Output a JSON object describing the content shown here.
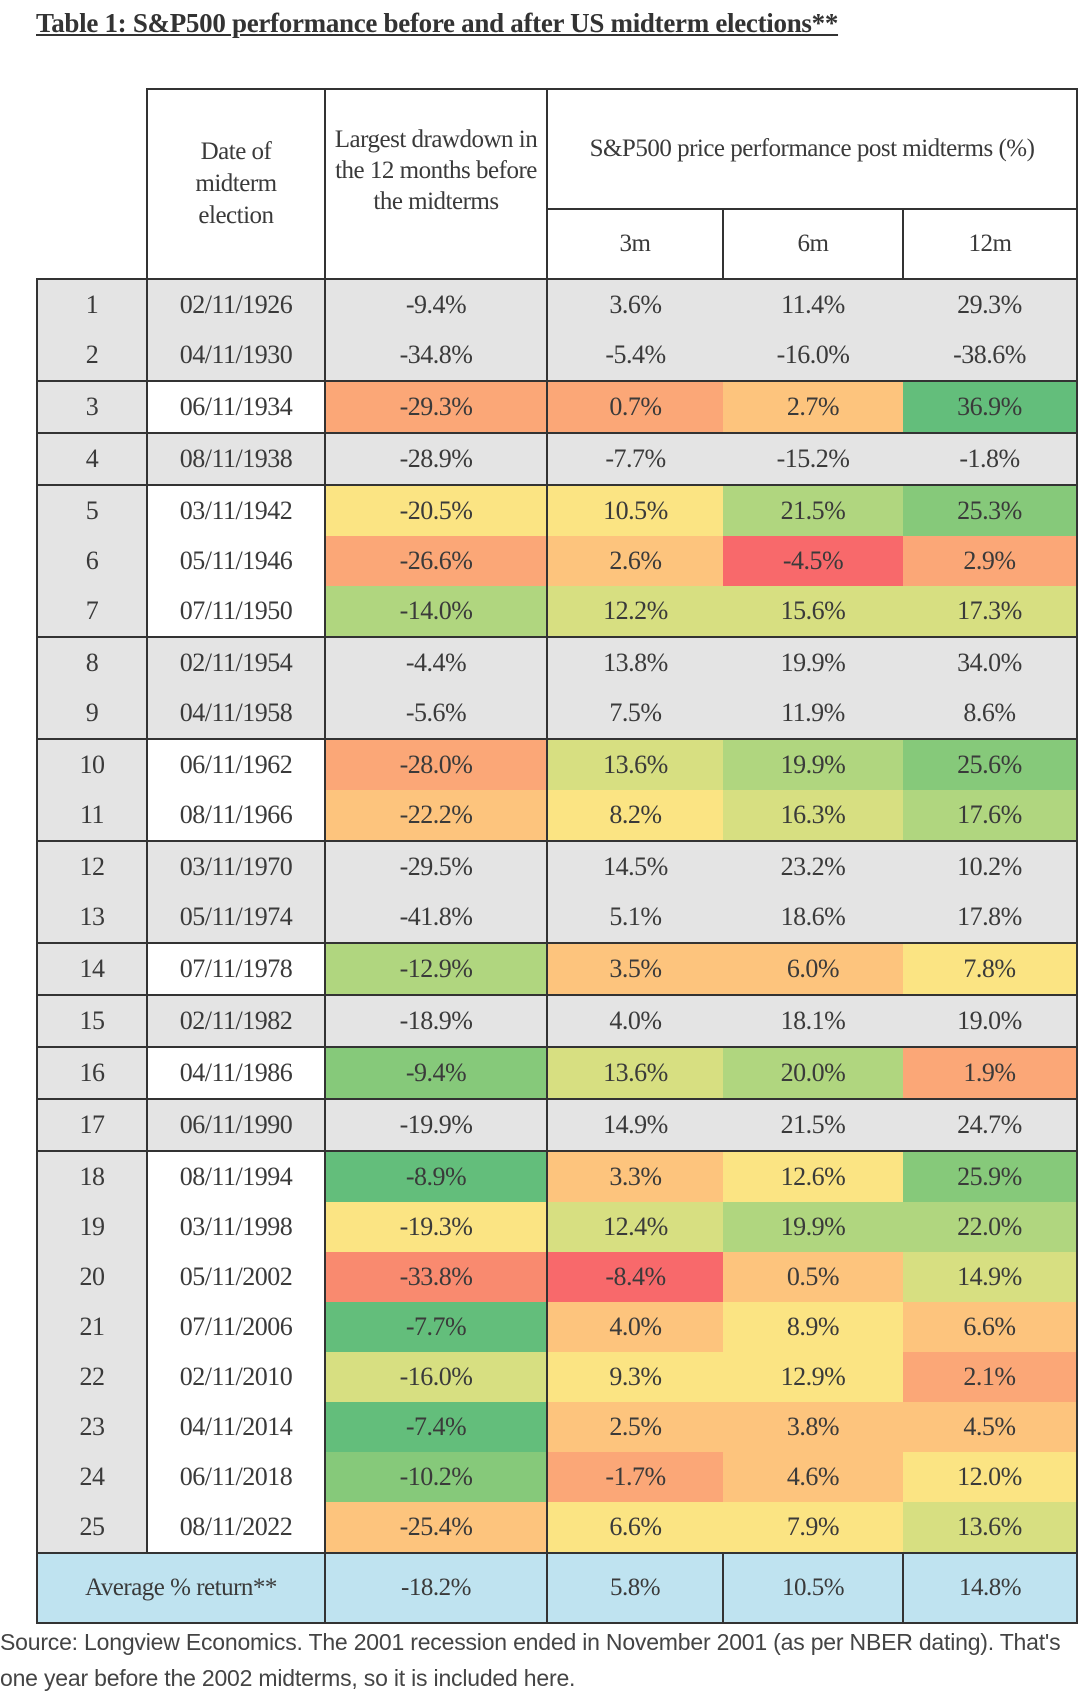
{
  "title": "Table 1: S&P500 performance before and after US midterm elections**",
  "headers": {
    "date": "Date of midterm election",
    "drawdown": "Largest drawdown in the 12 months before the midterms",
    "performance": "S&P500 price performance post midterms (%)",
    "m3": "3m",
    "m6": "6m",
    "m12": "12m"
  },
  "colors": {
    "grey": "#e4e4e4",
    "white": "#ffffff",
    "dark_green": "#63be7b",
    "green": "#86c97a",
    "light_green": "#b0d67f",
    "yellow_green": "#d7df81",
    "yellow": "#fbe483",
    "light_orange": "#fdc47d",
    "orange": "#fba777",
    "red_orange": "#f98a6f",
    "red": "#f8696b",
    "average": "#bfe3f0"
  },
  "rows": [
    {
      "n": "1",
      "date": "02/11/1926",
      "drawdown": "-9.4%",
      "m3": "3.6%",
      "m6": "11.4%",
      "m12": "29.3%",
      "group_start": true,
      "fills": [
        "grey",
        "grey",
        "grey",
        "grey"
      ]
    },
    {
      "n": "2",
      "date": "04/11/1930",
      "drawdown": "-34.8%",
      "m3": "-5.4%",
      "m6": "-16.0%",
      "m12": "-38.6%",
      "group_start": false,
      "fills": [
        "grey",
        "grey",
        "grey",
        "grey"
      ]
    },
    {
      "n": "3",
      "date": "06/11/1934",
      "drawdown": "-29.3%",
      "m3": "0.7%",
      "m6": "2.7%",
      "m12": "36.9%",
      "group_start": true,
      "fills": [
        "orange",
        "orange",
        "light_orange",
        "dark_green"
      ]
    },
    {
      "n": "4",
      "date": "08/11/1938",
      "drawdown": "-28.9%",
      "m3": "-7.7%",
      "m6": "-15.2%",
      "m12": "-1.8%",
      "group_start": true,
      "fills": [
        "grey",
        "grey",
        "grey",
        "grey"
      ]
    },
    {
      "n": "5",
      "date": "03/11/1942",
      "drawdown": "-20.5%",
      "m3": "10.5%",
      "m6": "21.5%",
      "m12": "25.3%",
      "group_start": true,
      "fills": [
        "yellow",
        "yellow",
        "light_green",
        "green"
      ]
    },
    {
      "n": "6",
      "date": "05/11/1946",
      "drawdown": "-26.6%",
      "m3": "2.6%",
      "m6": "-4.5%",
      "m12": "2.9%",
      "group_start": false,
      "fills": [
        "orange",
        "light_orange",
        "red",
        "orange"
      ]
    },
    {
      "n": "7",
      "date": "07/11/1950",
      "drawdown": "-14.0%",
      "m3": "12.2%",
      "m6": "15.6%",
      "m12": "17.3%",
      "group_start": false,
      "fills": [
        "light_green",
        "yellow_green",
        "yellow_green",
        "yellow_green"
      ]
    },
    {
      "n": "8",
      "date": "02/11/1954",
      "drawdown": "-4.4%",
      "m3": "13.8%",
      "m6": "19.9%",
      "m12": "34.0%",
      "group_start": true,
      "fills": [
        "grey",
        "grey",
        "grey",
        "grey"
      ]
    },
    {
      "n": "9",
      "date": "04/11/1958",
      "drawdown": "-5.6%",
      "m3": "7.5%",
      "m6": "11.9%",
      "m12": "8.6%",
      "group_start": false,
      "fills": [
        "grey",
        "grey",
        "grey",
        "grey"
      ]
    },
    {
      "n": "10",
      "date": "06/11/1962",
      "drawdown": "-28.0%",
      "m3": "13.6%",
      "m6": "19.9%",
      "m12": "25.6%",
      "group_start": true,
      "fills": [
        "orange",
        "yellow_green",
        "light_green",
        "green"
      ]
    },
    {
      "n": "11",
      "date": "08/11/1966",
      "drawdown": "-22.2%",
      "m3": "8.2%",
      "m6": "16.3%",
      "m12": "17.6%",
      "group_start": false,
      "fills": [
        "light_orange",
        "yellow",
        "yellow_green",
        "light_green"
      ]
    },
    {
      "n": "12",
      "date": "03/11/1970",
      "drawdown": "-29.5%",
      "m3": "14.5%",
      "m6": "23.2%",
      "m12": "10.2%",
      "group_start": true,
      "fills": [
        "grey",
        "grey",
        "grey",
        "grey"
      ]
    },
    {
      "n": "13",
      "date": "05/11/1974",
      "drawdown": "-41.8%",
      "m3": "5.1%",
      "m6": "18.6%",
      "m12": "17.8%",
      "group_start": false,
      "fills": [
        "grey",
        "grey",
        "grey",
        "grey"
      ]
    },
    {
      "n": "14",
      "date": "07/11/1978",
      "drawdown": "-12.9%",
      "m3": "3.5%",
      "m6": "6.0%",
      "m12": "7.8%",
      "group_start": true,
      "fills": [
        "light_green",
        "light_orange",
        "light_orange",
        "yellow"
      ]
    },
    {
      "n": "15",
      "date": "02/11/1982",
      "drawdown": "-18.9%",
      "m3": "4.0%",
      "m6": "18.1%",
      "m12": "19.0%",
      "group_start": true,
      "fills": [
        "grey",
        "grey",
        "grey",
        "grey"
      ]
    },
    {
      "n": "16",
      "date": "04/11/1986",
      "drawdown": "-9.4%",
      "m3": "13.6%",
      "m6": "20.0%",
      "m12": "1.9%",
      "group_start": true,
      "fills": [
        "green",
        "yellow_green",
        "light_green",
        "orange"
      ]
    },
    {
      "n": "17",
      "date": "06/11/1990",
      "drawdown": "-19.9%",
      "m3": "14.9%",
      "m6": "21.5%",
      "m12": "24.7%",
      "group_start": true,
      "fills": [
        "grey",
        "grey",
        "grey",
        "grey"
      ]
    },
    {
      "n": "18",
      "date": "08/11/1994",
      "drawdown": "-8.9%",
      "m3": "3.3%",
      "m6": "12.6%",
      "m12": "25.9%",
      "group_start": true,
      "fills": [
        "dark_green",
        "light_orange",
        "yellow",
        "green"
      ]
    },
    {
      "n": "19",
      "date": "03/11/1998",
      "drawdown": "-19.3%",
      "m3": "12.4%",
      "m6": "19.9%",
      "m12": "22.0%",
      "group_start": false,
      "fills": [
        "yellow",
        "yellow_green",
        "light_green",
        "light_green"
      ]
    },
    {
      "n": "20",
      "date": "05/11/2002",
      "drawdown": "-33.8%",
      "m3": "-8.4%",
      "m6": "0.5%",
      "m12": "14.9%",
      "group_start": false,
      "fills": [
        "red_orange",
        "red",
        "light_orange",
        "yellow_green"
      ]
    },
    {
      "n": "21",
      "date": "07/11/2006",
      "drawdown": "-7.7%",
      "m3": "4.0%",
      "m6": "8.9%",
      "m12": "6.6%",
      "group_start": false,
      "fills": [
        "dark_green",
        "light_orange",
        "yellow",
        "light_orange"
      ]
    },
    {
      "n": "22",
      "date": "02/11/2010",
      "drawdown": "-16.0%",
      "m3": "9.3%",
      "m6": "12.9%",
      "m12": "2.1%",
      "group_start": false,
      "fills": [
        "yellow_green",
        "yellow",
        "yellow",
        "orange"
      ]
    },
    {
      "n": "23",
      "date": "04/11/2014",
      "drawdown": "-7.4%",
      "m3": "2.5%",
      "m6": "3.8%",
      "m12": "4.5%",
      "group_start": false,
      "fills": [
        "dark_green",
        "light_orange",
        "light_orange",
        "light_orange"
      ]
    },
    {
      "n": "24",
      "date": "06/11/2018",
      "drawdown": "-10.2%",
      "m3": "-1.7%",
      "m6": "4.6%",
      "m12": "12.0%",
      "group_start": false,
      "fills": [
        "green",
        "orange",
        "light_orange",
        "yellow"
      ]
    },
    {
      "n": "25",
      "date": "08/11/2022",
      "drawdown": "-25.4%",
      "m3": "6.6%",
      "m6": "7.9%",
      "m12": "13.6%",
      "group_start": false,
      "fills": [
        "light_orange",
        "yellow",
        "yellow",
        "yellow_green"
      ]
    }
  ],
  "average": {
    "label": "Average % return**",
    "drawdown": "-18.2%",
    "m3": "5.8%",
    "m6": "10.5%",
    "m12": "14.8%"
  },
  "source": "Source: Longview Economics. The 2001 recession ended in November 2001 (as per NBER dating). That's one year before the 2002 midterms, so it is included here."
}
